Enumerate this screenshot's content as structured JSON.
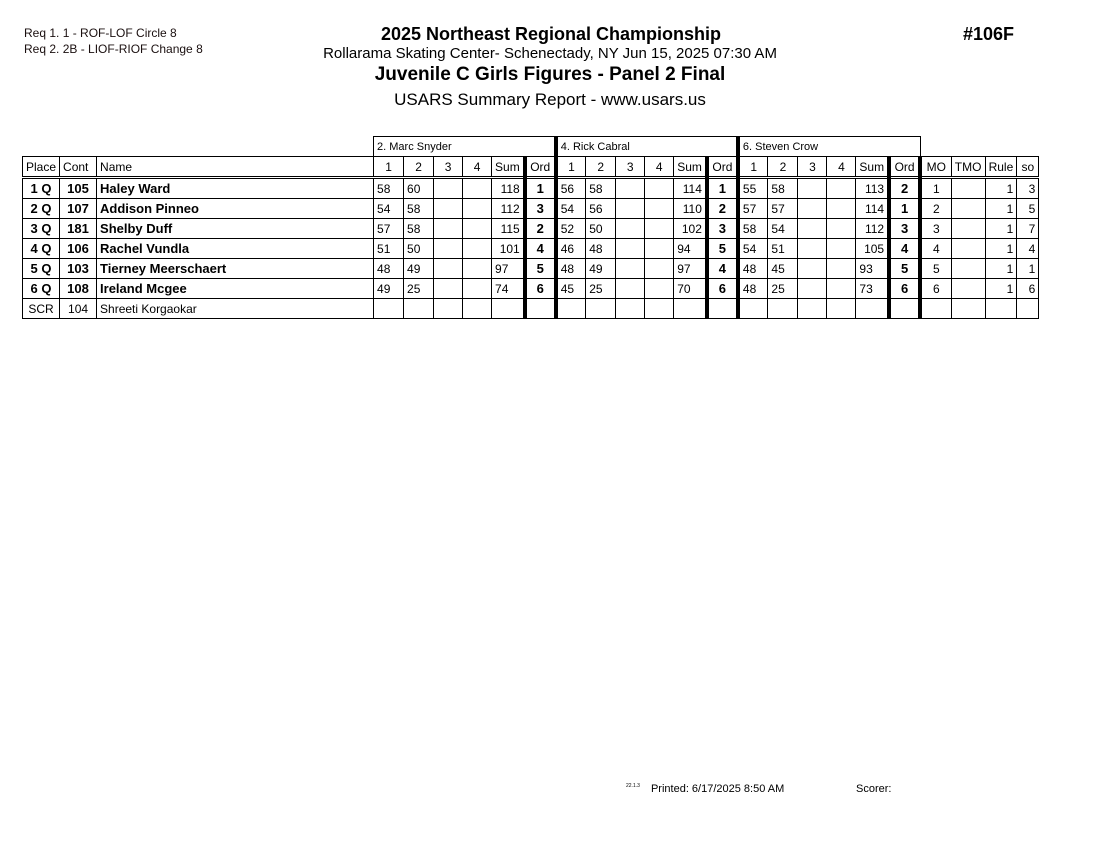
{
  "requirements": [
    "Req  1.  1 - ROF-LOF Circle 8",
    "Req  2.  2B - LIOF-RIOF Change 8"
  ],
  "header": {
    "title": "2025 Northeast Regional Championship",
    "venue": "Rollarama Skating Center- Schenectady, NY  Jun 15, 2025  07:30 AM",
    "event": "Juvenile C Girls Figures - Panel 2 Final",
    "report": "USARS Summary Report - www.usars.us",
    "event_number": "#106F"
  },
  "judges": [
    "2.  Marc Snyder",
    "4.  Rick Cabral",
    "6.  Steven Crow"
  ],
  "columns": {
    "place": "Place",
    "cont": "Cont",
    "name": "Name",
    "judge_cols": [
      "1",
      "2",
      "3",
      "4",
      "Sum",
      "Ord"
    ],
    "mo": "MO",
    "tmo": "TMO",
    "rule": "Rule",
    "so": "so"
  },
  "rows": [
    {
      "place": "1 Q",
      "cont": "105",
      "name": "Haley Ward",
      "bold": true,
      "judges": [
        [
          "58",
          "60",
          "",
          "",
          "118",
          "1"
        ],
        [
          "56",
          "58",
          "",
          "",
          "114",
          "1"
        ],
        [
          "55",
          "58",
          "",
          "",
          "113",
          "2"
        ]
      ],
      "mo": "1",
      "tmo": "",
      "rule": "1",
      "so": "3"
    },
    {
      "place": "2 Q",
      "cont": "107",
      "name": "Addison Pinneo",
      "bold": true,
      "judges": [
        [
          "54",
          "58",
          "",
          "",
          "112",
          "3"
        ],
        [
          "54",
          "56",
          "",
          "",
          "110",
          "2"
        ],
        [
          "57",
          "57",
          "",
          "",
          "114",
          "1"
        ]
      ],
      "mo": "2",
      "tmo": "",
      "rule": "1",
      "so": "5"
    },
    {
      "place": "3 Q",
      "cont": "181",
      "name": "Shelby Duff",
      "bold": true,
      "judges": [
        [
          "57",
          "58",
          "",
          "",
          "115",
          "2"
        ],
        [
          "52",
          "50",
          "",
          "",
          "102",
          "3"
        ],
        [
          "58",
          "54",
          "",
          "",
          "112",
          "3"
        ]
      ],
      "mo": "3",
      "tmo": "",
      "rule": "1",
      "so": "7"
    },
    {
      "place": "4 Q",
      "cont": "106",
      "name": "Rachel Vundla",
      "bold": true,
      "judges": [
        [
          "51",
          "50",
          "",
          "",
          "101",
          "4"
        ],
        [
          "46",
          "48",
          "",
          "",
          "94",
          "5"
        ],
        [
          "54",
          "51",
          "",
          "",
          "105",
          "4"
        ]
      ],
      "mo": "4",
      "tmo": "",
      "rule": "1",
      "so": "4"
    },
    {
      "place": "5 Q",
      "cont": "103",
      "name": "Tierney Meerschaert",
      "bold": true,
      "judges": [
        [
          "48",
          "49",
          "",
          "",
          "97",
          "5"
        ],
        [
          "48",
          "49",
          "",
          "",
          "97",
          "4"
        ],
        [
          "48",
          "45",
          "",
          "",
          "93",
          "5"
        ]
      ],
      "mo": "5",
      "tmo": "",
      "rule": "1",
      "so": "1"
    },
    {
      "place": "6 Q",
      "cont": "108",
      "name": "Ireland Mcgee",
      "bold": true,
      "judges": [
        [
          "49",
          "25",
          "",
          "",
          "74",
          "6"
        ],
        [
          "45",
          "25",
          "",
          "",
          "70",
          "6"
        ],
        [
          "48",
          "25",
          "",
          "",
          "73",
          "6"
        ]
      ],
      "mo": "6",
      "tmo": "",
      "rule": "1",
      "so": "6"
    },
    {
      "place": "SCR",
      "cont": "104",
      "name": "Shreeti Korgaokar",
      "bold": false,
      "judges": [
        [
          "",
          "",
          "",
          "",
          "",
          ""
        ],
        [
          "",
          "",
          "",
          "",
          "",
          ""
        ],
        [
          "",
          "",
          "",
          "",
          "",
          ""
        ]
      ],
      "mo": "",
      "tmo": "",
      "rule": "",
      "so": ""
    }
  ],
  "footer": {
    "version": "22.1.3",
    "printed": "Printed:  6/17/2025  8:50 AM",
    "scorer": "Scorer:"
  }
}
